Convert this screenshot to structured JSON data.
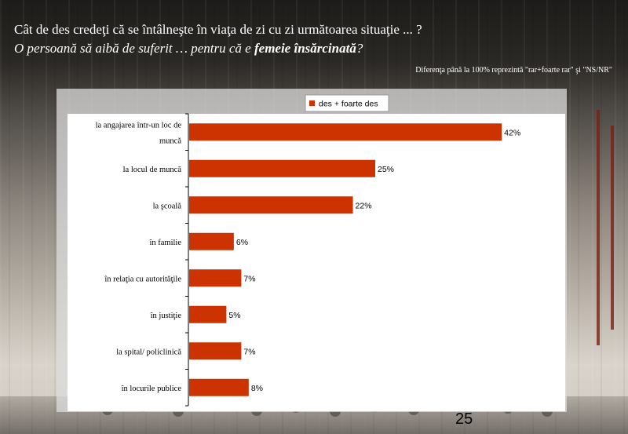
{
  "title": {
    "line1": "Cât de des credeţi că se întâlneşte în viaţa de zi cu zi următoarea situaţie ... ?",
    "line2_prefix": "O persoană să aibă de suferit … pentru că e ",
    "line2_emphasis": "femeie însărcinată",
    "line2_suffix": "?"
  },
  "note": "Diferenţa până la 100% reprezintă  \"rar+foarte rar\" şi \"NS/NR\"",
  "page_number": "25",
  "colors": {
    "bar": "#cc3300",
    "panel": "#dcdcdc",
    "plot_bg": "#ffffff",
    "title_text": "#ffffff"
  },
  "chart_data": {
    "type": "bar",
    "orientation": "horizontal",
    "categories": [
      "la angajarea într-un loc de muncă",
      "la locul de muncă",
      "la şcoală",
      "în familie",
      "în relaţia cu autorităţile",
      "în justiţie",
      "la spital/ policlinică",
      "în locurile publice"
    ],
    "category_lines": [
      [
        "la angajarea într-un loc de",
        "muncă"
      ],
      [
        "la locul de muncă"
      ],
      [
        "la şcoală"
      ],
      [
        "în familie"
      ],
      [
        "în relaţia cu autorităţile"
      ],
      [
        "în justiţie"
      ],
      [
        "la spital/ policlinică"
      ],
      [
        "în locurile publice"
      ]
    ],
    "series": [
      {
        "name": "des + foarte des",
        "values": [
          42,
          25,
          22,
          6,
          7,
          5,
          7,
          8
        ]
      }
    ],
    "data_labels": [
      "42%",
      "25%",
      "22%",
      "6%",
      "7%",
      "5%",
      "7%",
      "8%"
    ],
    "xlim": [
      0,
      50
    ],
    "legend_position": "top",
    "grid": false
  }
}
